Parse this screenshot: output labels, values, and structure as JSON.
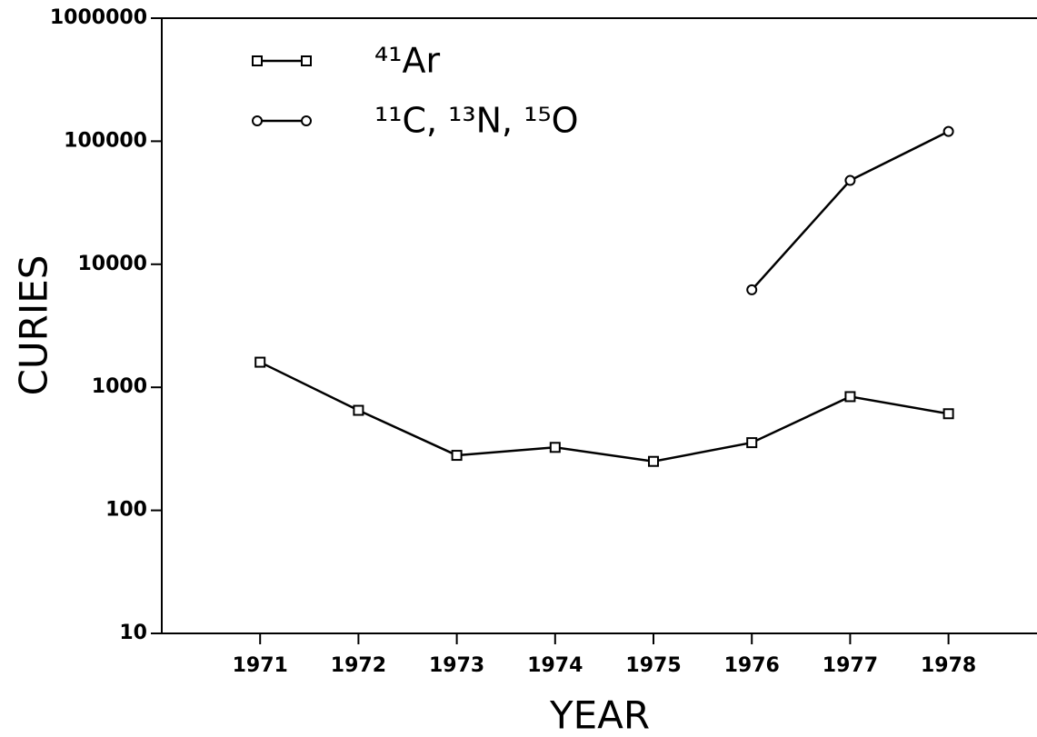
{
  "chart_data": {
    "type": "line",
    "x_label": "YEAR",
    "y_label": "CURIES",
    "x": [
      1971,
      1972,
      1973,
      1974,
      1975,
      1976,
      1977,
      1978
    ],
    "xlim": [
      1970,
      1978.9
    ],
    "xticks": [
      1971,
      1972,
      1973,
      1974,
      1975,
      1976,
      1977,
      1978
    ],
    "ylim": [
      10,
      1000000
    ],
    "yticks": [
      10,
      100,
      1000,
      10000,
      100000,
      1000000
    ],
    "log_y": true,
    "legend": "upper left",
    "series": [
      {
        "name": "⁴¹Ar",
        "color": "#000000",
        "marker": "square",
        "values": [
          1600,
          650,
          280,
          325,
          250,
          355,
          840,
          610
        ]
      },
      {
        "name": "¹¹C, ¹³N, ¹⁵O",
        "color": "#000000",
        "marker": "circle",
        "values": [
          null,
          null,
          null,
          null,
          null,
          6200,
          48000,
          120000
        ]
      }
    ]
  }
}
